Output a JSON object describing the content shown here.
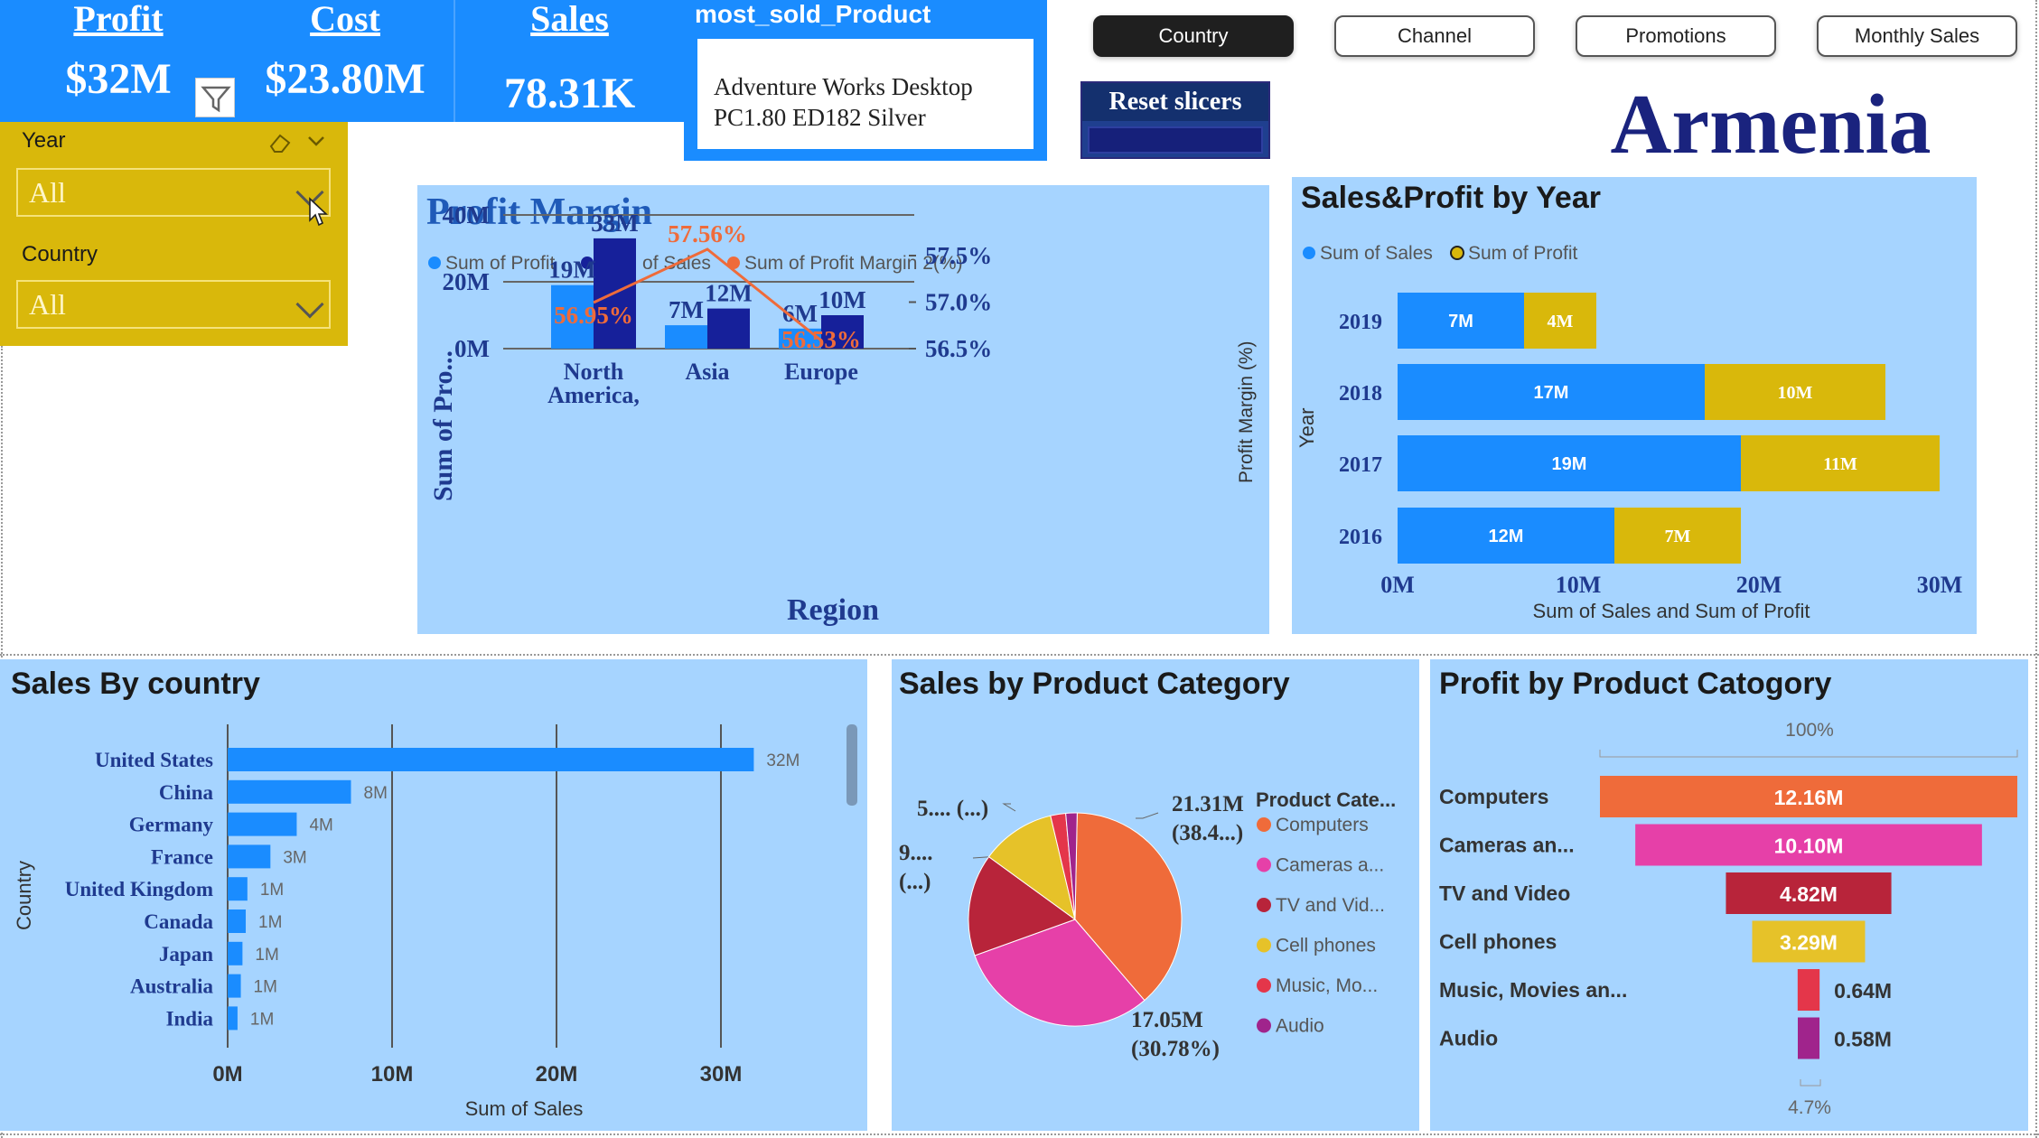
{
  "kpis": [
    {
      "title": "Profit",
      "value": "$32M"
    },
    {
      "title": "Cost",
      "value": "$23.80M"
    },
    {
      "title": "Sales",
      "value": "78.31K"
    }
  ],
  "most_sold": {
    "title": "most_sold_Product",
    "line1": "Adventure Works Desktop",
    "line2": "PC1.80 ED182 Silver"
  },
  "nav": [
    "Country",
    "Channel",
    "Promotions",
    "Monthly Sales"
  ],
  "reset_label": "Reset slicers",
  "country_title": "Armenia",
  "slicers": {
    "year_label": "Year",
    "year_value": "All",
    "country_label": "Country",
    "country_value": "All"
  },
  "colors": {
    "blue": "#1a8cff",
    "navy": "#16209a",
    "orange": "#ef6b3a",
    "gold": "#d9b80b",
    "panel": "#a6d4ff",
    "pink": "#e640a8",
    "red": "#b8243a",
    "yellow": "#e6c229",
    "magenta": "#a0248c"
  },
  "chart_data": [
    {
      "id": "profit_margin",
      "type": "bar",
      "title": "Profit Margin",
      "legend": [
        "Sum of Profit",
        "Sum of Sales",
        "Sum of Profit Margin 2(%)"
      ],
      "categories": [
        "North America,",
        "Asia",
        "Europe"
      ],
      "series": [
        {
          "name": "Sum of Profit",
          "values": [
            19,
            7,
            6
          ],
          "labels": [
            "19M",
            "7M",
            "6M"
          ]
        },
        {
          "name": "Sum of Sales",
          "values": [
            33,
            12,
            10
          ],
          "labels": [
            "33M",
            "12M",
            "10M"
          ]
        },
        {
          "name": "Sum of Profit Margin 2(%)",
          "values": [
            56.95,
            57.56,
            56.53
          ],
          "labels": [
            "56.95%",
            "57.56%",
            "56.53%"
          ]
        }
      ],
      "xlabel": "Region",
      "ylabel": "Sum of Pro...",
      "y2label": "Profit Margin (%)",
      "ylim": [
        0,
        40
      ],
      "y_ticks": [
        "0M",
        "20M",
        "40M"
      ],
      "y2lim": [
        56.5,
        57.5
      ],
      "y2_ticks": [
        "56.5%",
        "57.0%",
        "57.5%"
      ]
    },
    {
      "id": "sales_profit_year",
      "type": "bar",
      "title": "Sales&Profit by Year",
      "legend": [
        "Sum of Sales",
        "Sum of Profit"
      ],
      "categories": [
        "2019",
        "2018",
        "2017",
        "2016"
      ],
      "series": [
        {
          "name": "Sum of Sales",
          "values": [
            7,
            17,
            19,
            12
          ],
          "labels": [
            "7M",
            "17M",
            "19M",
            "12M"
          ]
        },
        {
          "name": "Sum of Profit",
          "values": [
            4,
            10,
            11,
            7
          ],
          "labels": [
            "4M",
            "10M",
            "11M",
            "7M"
          ]
        }
      ],
      "xlabel": "Sum of Sales and Sum of Profit",
      "ylabel": "Year",
      "xlim": [
        0,
        30
      ],
      "x_ticks": [
        "0M",
        "10M",
        "20M",
        "30M"
      ]
    },
    {
      "id": "sales_by_country",
      "type": "bar",
      "title": "Sales By country",
      "categories": [
        "United States",
        "China",
        "Germany",
        "France",
        "United Kingdom",
        "Canada",
        "Japan",
        "Australia",
        "India"
      ],
      "values": [
        32,
        7.5,
        4.2,
        2.6,
        1.2,
        1.1,
        0.9,
        0.8,
        0.6
      ],
      "labels": [
        "32M",
        "8M",
        "4M",
        "3M",
        "1M",
        "1M",
        "1M",
        "1M",
        "1M"
      ],
      "xlabel": "Sum of Sales",
      "ylabel": "Country",
      "xlim": [
        0,
        33
      ],
      "x_ticks": [
        "0M",
        "10M",
        "20M",
        "30M"
      ]
    },
    {
      "id": "sales_by_category",
      "type": "pie",
      "title": "Sales by Product Category",
      "legend_title": "Product Cate...",
      "categories": [
        "Computers",
        "Cameras a...",
        "TV and Vid...",
        "Cell phones",
        "Music, Mo...",
        "Audio"
      ],
      "values": [
        38.4,
        30.78,
        15.5,
        11.3,
        2.3,
        1.72
      ],
      "callouts": [
        {
          "line1": "21.31M",
          "line2": "(38.4...)"
        },
        {
          "line1": "17.05M",
          "line2": "(30.78%)"
        },
        {
          "line1": "9....",
          "line2": "(...)"
        },
        {
          "line1": "5.... (...)",
          "line2": ""
        }
      ]
    },
    {
      "id": "profit_by_category",
      "type": "bar",
      "title": "Profit by Product Catogory",
      "categories": [
        "Computers",
        "Cameras an...",
        "TV and Video",
        "Cell phones",
        "Music, Movies an...",
        "Audio"
      ],
      "values": [
        12.16,
        10.1,
        4.82,
        3.29,
        0.64,
        0.58
      ],
      "labels": [
        "12.16M",
        "10.10M",
        "4.82M",
        "3.29M",
        "0.64M",
        "0.58M"
      ],
      "top_label": "100%",
      "bottom_label": "4.7%"
    }
  ]
}
